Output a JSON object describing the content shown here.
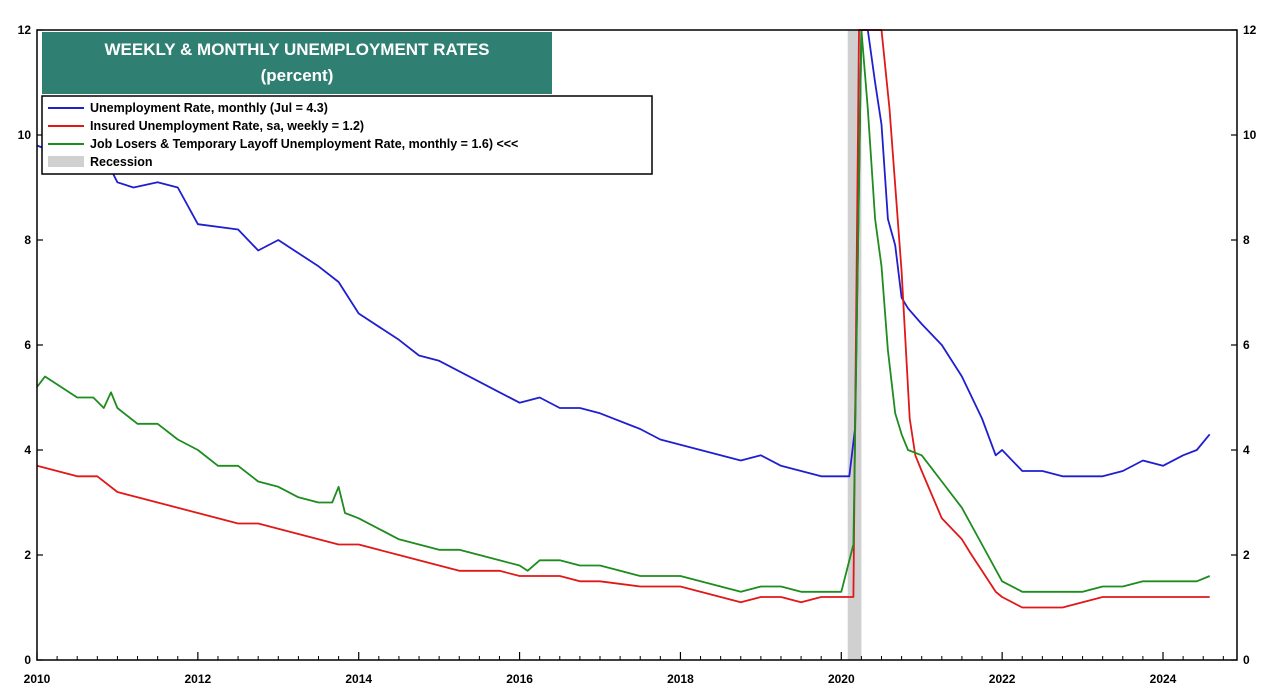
{
  "chart_data": {
    "type": "line",
    "title": "WEEKLY & MONTHLY UNEMPLOYMENT RATES",
    "subtitle": "(percent)",
    "xlabel": "",
    "ylabel": "",
    "xlim": [
      2010,
      2024.92
    ],
    "ylim": [
      0,
      12
    ],
    "x_ticks": [
      2010,
      2012,
      2014,
      2016,
      2018,
      2020,
      2022,
      2024
    ],
    "y_ticks": [
      0,
      2,
      4,
      6,
      8,
      10,
      12
    ],
    "grid": false,
    "legend_placement": "top-left",
    "recession": {
      "start": 2020.08,
      "end": 2020.25,
      "label": "Recession",
      "color": "#d0d0d0"
    },
    "series": [
      {
        "name": "Unemployment Rate, monthly (Jul = 4.3)",
        "color": "#1f1fd0",
        "points": [
          [
            2010.0,
            9.8
          ],
          [
            2010.5,
            9.5
          ],
          [
            2010.9,
            9.4
          ],
          [
            2011.0,
            9.1
          ],
          [
            2011.2,
            9.0
          ],
          [
            2011.5,
            9.1
          ],
          [
            2011.75,
            9.0
          ],
          [
            2012.0,
            8.3
          ],
          [
            2012.5,
            8.2
          ],
          [
            2012.75,
            7.8
          ],
          [
            2013.0,
            8.0
          ],
          [
            2013.5,
            7.5
          ],
          [
            2013.75,
            7.2
          ],
          [
            2014.0,
            6.6
          ],
          [
            2014.5,
            6.1
          ],
          [
            2014.75,
            5.8
          ],
          [
            2015.0,
            5.7
          ],
          [
            2015.5,
            5.3
          ],
          [
            2015.75,
            5.1
          ],
          [
            2016.0,
            4.9
          ],
          [
            2016.25,
            5.0
          ],
          [
            2016.5,
            4.8
          ],
          [
            2016.75,
            4.8
          ],
          [
            2017.0,
            4.7
          ],
          [
            2017.5,
            4.4
          ],
          [
            2017.75,
            4.2
          ],
          [
            2018.0,
            4.1
          ],
          [
            2018.5,
            3.9
          ],
          [
            2018.75,
            3.8
          ],
          [
            2019.0,
            3.9
          ],
          [
            2019.25,
            3.7
          ],
          [
            2019.5,
            3.6
          ],
          [
            2019.75,
            3.5
          ],
          [
            2020.0,
            3.5
          ],
          [
            2020.1,
            3.5
          ],
          [
            2020.17,
            4.4
          ],
          [
            2020.25,
            14.7
          ],
          [
            2020.33,
            13.2
          ],
          [
            2020.42,
            11.0
          ],
          [
            2020.5,
            10.2
          ],
          [
            2020.58,
            8.4
          ],
          [
            2020.67,
            7.9
          ],
          [
            2020.75,
            6.9
          ],
          [
            2020.83,
            6.7
          ],
          [
            2021.0,
            6.4
          ],
          [
            2021.25,
            6.0
          ],
          [
            2021.5,
            5.4
          ],
          [
            2021.75,
            4.6
          ],
          [
            2021.92,
            3.9
          ],
          [
            2022.0,
            4.0
          ],
          [
            2022.25,
            3.6
          ],
          [
            2022.5,
            3.6
          ],
          [
            2022.75,
            3.5
          ],
          [
            2023.0,
            3.5
          ],
          [
            2023.25,
            3.5
          ],
          [
            2023.5,
            3.6
          ],
          [
            2023.75,
            3.8
          ],
          [
            2024.0,
            3.7
          ],
          [
            2024.25,
            3.9
          ],
          [
            2024.42,
            4.0
          ],
          [
            2024.58,
            4.3
          ]
        ]
      },
      {
        "name": "Insured Unemployment Rate, sa, weekly = 1.2)",
        "color": "#e01818",
        "points": [
          [
            2010.0,
            3.7
          ],
          [
            2010.25,
            3.6
          ],
          [
            2010.5,
            3.5
          ],
          [
            2010.75,
            3.5
          ],
          [
            2011.0,
            3.2
          ],
          [
            2011.25,
            3.1
          ],
          [
            2011.5,
            3.0
          ],
          [
            2011.75,
            2.9
          ],
          [
            2012.0,
            2.8
          ],
          [
            2012.25,
            2.7
          ],
          [
            2012.5,
            2.6
          ],
          [
            2012.75,
            2.6
          ],
          [
            2013.0,
            2.5
          ],
          [
            2013.25,
            2.4
          ],
          [
            2013.5,
            2.3
          ],
          [
            2013.75,
            2.2
          ],
          [
            2014.0,
            2.2
          ],
          [
            2014.25,
            2.1
          ],
          [
            2014.5,
            2.0
          ],
          [
            2014.75,
            1.9
          ],
          [
            2015.0,
            1.8
          ],
          [
            2015.25,
            1.7
          ],
          [
            2015.5,
            1.7
          ],
          [
            2015.75,
            1.7
          ],
          [
            2016.0,
            1.6
          ],
          [
            2016.5,
            1.6
          ],
          [
            2016.75,
            1.5
          ],
          [
            2017.0,
            1.5
          ],
          [
            2017.5,
            1.4
          ],
          [
            2017.75,
            1.4
          ],
          [
            2018.0,
            1.4
          ],
          [
            2018.25,
            1.3
          ],
          [
            2018.5,
            1.2
          ],
          [
            2018.75,
            1.1
          ],
          [
            2019.0,
            1.2
          ],
          [
            2019.25,
            1.2
          ],
          [
            2019.5,
            1.1
          ],
          [
            2019.75,
            1.2
          ],
          [
            2020.0,
            1.2
          ],
          [
            2020.15,
            1.2
          ],
          [
            2020.22,
            16.0
          ],
          [
            2020.35,
            16.0
          ],
          [
            2020.5,
            12.0
          ],
          [
            2020.6,
            10.5
          ],
          [
            2020.75,
            7.4
          ],
          [
            2020.85,
            4.6
          ],
          [
            2020.92,
            3.9
          ],
          [
            2021.0,
            3.6
          ],
          [
            2021.25,
            2.7
          ],
          [
            2021.5,
            2.3
          ],
          [
            2021.62,
            2.0
          ],
          [
            2021.75,
            1.7
          ],
          [
            2021.92,
            1.3
          ],
          [
            2022.0,
            1.2
          ],
          [
            2022.25,
            1.0
          ],
          [
            2022.5,
            1.0
          ],
          [
            2022.75,
            1.0
          ],
          [
            2023.0,
            1.1
          ],
          [
            2023.25,
            1.2
          ],
          [
            2023.5,
            1.2
          ],
          [
            2024.0,
            1.2
          ],
          [
            2024.58,
            1.2
          ]
        ]
      },
      {
        "name": "Job Losers & Temporary Layoff Unemployment Rate, monthly = 1.6) <<<",
        "color": "#1e8c1e",
        "points": [
          [
            2010.0,
            5.2
          ],
          [
            2010.1,
            5.4
          ],
          [
            2010.3,
            5.2
          ],
          [
            2010.5,
            5.0
          ],
          [
            2010.7,
            5.0
          ],
          [
            2010.83,
            4.8
          ],
          [
            2010.92,
            5.1
          ],
          [
            2011.0,
            4.8
          ],
          [
            2011.25,
            4.5
          ],
          [
            2011.5,
            4.5
          ],
          [
            2011.75,
            4.2
          ],
          [
            2012.0,
            4.0
          ],
          [
            2012.25,
            3.7
          ],
          [
            2012.5,
            3.7
          ],
          [
            2012.75,
            3.4
          ],
          [
            2013.0,
            3.3
          ],
          [
            2013.25,
            3.1
          ],
          [
            2013.5,
            3.0
          ],
          [
            2013.67,
            3.0
          ],
          [
            2013.75,
            3.3
          ],
          [
            2013.83,
            2.8
          ],
          [
            2014.0,
            2.7
          ],
          [
            2014.25,
            2.5
          ],
          [
            2014.5,
            2.3
          ],
          [
            2014.75,
            2.2
          ],
          [
            2015.0,
            2.1
          ],
          [
            2015.25,
            2.1
          ],
          [
            2015.5,
            2.0
          ],
          [
            2015.75,
            1.9
          ],
          [
            2016.0,
            1.8
          ],
          [
            2016.1,
            1.7
          ],
          [
            2016.25,
            1.9
          ],
          [
            2016.5,
            1.9
          ],
          [
            2016.75,
            1.8
          ],
          [
            2017.0,
            1.8
          ],
          [
            2017.25,
            1.7
          ],
          [
            2017.5,
            1.6
          ],
          [
            2017.75,
            1.6
          ],
          [
            2018.0,
            1.6
          ],
          [
            2018.25,
            1.5
          ],
          [
            2018.5,
            1.4
          ],
          [
            2018.75,
            1.3
          ],
          [
            2019.0,
            1.4
          ],
          [
            2019.25,
            1.4
          ],
          [
            2019.5,
            1.3
          ],
          [
            2019.75,
            1.3
          ],
          [
            2020.0,
            1.3
          ],
          [
            2020.15,
            2.2
          ],
          [
            2020.25,
            12.8
          ],
          [
            2020.33,
            10.5
          ],
          [
            2020.42,
            8.4
          ],
          [
            2020.5,
            7.5
          ],
          [
            2020.58,
            5.9
          ],
          [
            2020.67,
            4.7
          ],
          [
            2020.75,
            4.3
          ],
          [
            2020.83,
            4.0
          ],
          [
            2021.0,
            3.9
          ],
          [
            2021.25,
            3.4
          ],
          [
            2021.5,
            2.9
          ],
          [
            2021.75,
            2.2
          ],
          [
            2022.0,
            1.5
          ],
          [
            2022.25,
            1.3
          ],
          [
            2022.5,
            1.3
          ],
          [
            2022.75,
            1.3
          ],
          [
            2023.0,
            1.3
          ],
          [
            2023.25,
            1.4
          ],
          [
            2023.5,
            1.4
          ],
          [
            2023.75,
            1.5
          ],
          [
            2024.0,
            1.5
          ],
          [
            2024.25,
            1.5
          ],
          [
            2024.42,
            1.5
          ],
          [
            2024.58,
            1.6
          ]
        ]
      }
    ]
  }
}
